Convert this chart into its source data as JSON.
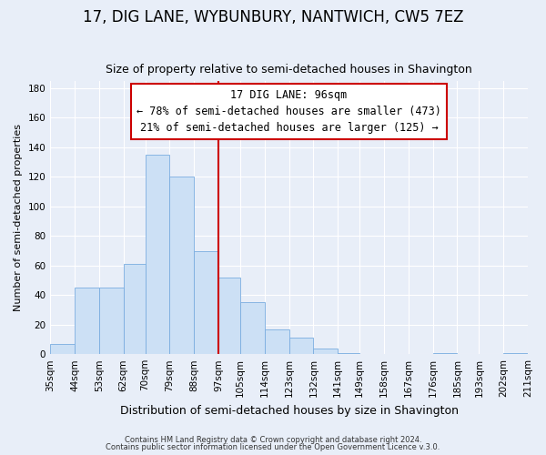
{
  "title": "17, DIG LANE, WYBUNBURY, NANTWICH, CW5 7EZ",
  "subtitle": "Size of property relative to semi-detached houses in Shavington",
  "xlabel": "Distribution of semi-detached houses by size in Shavington",
  "ylabel": "Number of semi-detached properties",
  "bar_color": "#cce0f5",
  "bar_edge_color": "#7aade0",
  "reference_line_x": 97,
  "reference_line_color": "#cc0000",
  "annotation_title": "17 DIG LANE: 96sqm",
  "annotation_line1": "← 78% of semi-detached houses are smaller (473)",
  "annotation_line2": "21% of semi-detached houses are larger (125) →",
  "annotation_box_color": "white",
  "annotation_box_edge": "#cc0000",
  "bin_edges": [
    35,
    44,
    53,
    62,
    70,
    79,
    88,
    97,
    105,
    114,
    123,
    132,
    141,
    149,
    158,
    167,
    176,
    185,
    193,
    202,
    211
  ],
  "bin_labels": [
    "35sqm",
    "44sqm",
    "53sqm",
    "62sqm",
    "70sqm",
    "79sqm",
    "88sqm",
    "97sqm",
    "105sqm",
    "114sqm",
    "123sqm",
    "132sqm",
    "141sqm",
    "149sqm",
    "158sqm",
    "167sqm",
    "176sqm",
    "185sqm",
    "193sqm",
    "202sqm",
    "211sqm"
  ],
  "bar_heights": [
    7,
    45,
    45,
    61,
    135,
    120,
    70,
    52,
    35,
    17,
    11,
    4,
    1,
    0,
    0,
    0,
    1,
    0,
    0,
    1
  ],
  "ylim": [
    0,
    185
  ],
  "yticks": [
    0,
    20,
    40,
    60,
    80,
    100,
    120,
    140,
    160,
    180
  ],
  "footer_line1": "Contains HM Land Registry data © Crown copyright and database right 2024.",
  "footer_line2": "Contains public sector information licensed under the Open Government Licence v.3.0.",
  "background_color": "#e8eef8",
  "grid_color": "#ffffff",
  "title_fontsize": 12,
  "subtitle_fontsize": 9,
  "ylabel_fontsize": 8,
  "xlabel_fontsize": 9,
  "tick_fontsize": 7.5,
  "annotation_fontsize": 8.5
}
